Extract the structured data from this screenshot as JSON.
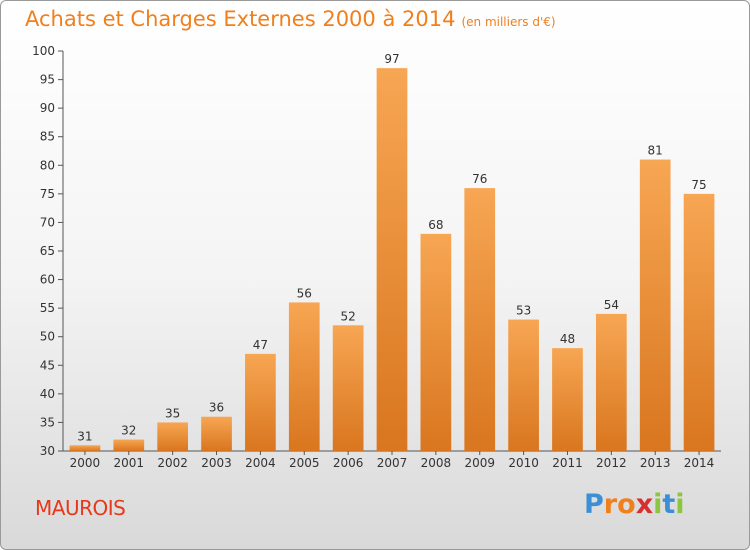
{
  "title": "Achats et Charges Externes 2000 à 2014",
  "unit_note": "(en milliers d'€)",
  "commune": "MAUROIS",
  "logo": {
    "text": "Proxiti",
    "letters": [
      "P",
      "r",
      "o",
      "x",
      "i",
      "t",
      "i"
    ],
    "colors": [
      "#3b8fd6",
      "#f07f1c",
      "#f07f1c",
      "#d62f2f",
      "#8cc63f",
      "#3b8fd6",
      "#8cc63f"
    ]
  },
  "colors": {
    "title": "#f07f1c",
    "commune": "#e8381c",
    "bar_top": "#f7a653",
    "bar_bottom": "#d9761f"
  },
  "chart_data": {
    "type": "bar",
    "title": "Achats et Charges Externes 2000 à 2014",
    "xlabel": "",
    "ylabel": "",
    "categories": [
      "2000",
      "2001",
      "2002",
      "2003",
      "2004",
      "2005",
      "2006",
      "2007",
      "2008",
      "2009",
      "2010",
      "2011",
      "2012",
      "2013",
      "2014"
    ],
    "values": [
      31,
      32,
      35,
      36,
      47,
      56,
      52,
      97,
      68,
      76,
      53,
      48,
      54,
      81,
      75
    ],
    "ylim": [
      30,
      100
    ],
    "yticks": [
      30,
      35,
      40,
      45,
      50,
      55,
      60,
      65,
      70,
      75,
      80,
      85,
      90,
      95,
      100
    ],
    "grid": false,
    "data_labels": true
  }
}
